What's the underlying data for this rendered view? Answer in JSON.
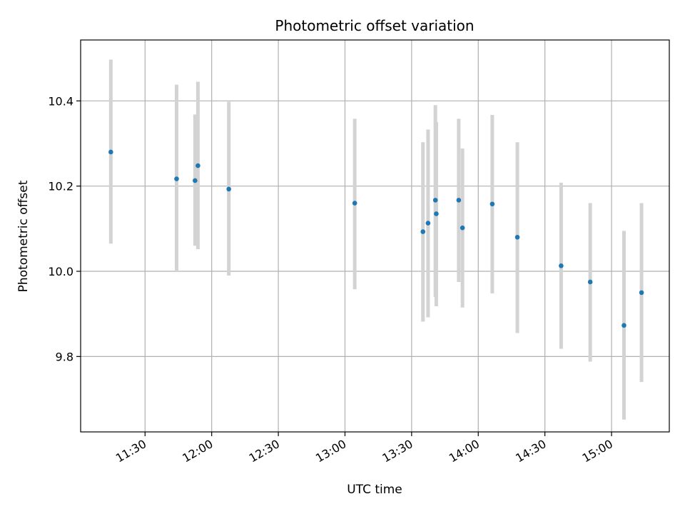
{
  "chart_data": {
    "type": "scatter",
    "title": "Photometric offset variation",
    "xlabel": "UTC time",
    "ylabel": "Photometric offset",
    "x_ticks": [
      "11:30",
      "12:00",
      "12:30",
      "13:00",
      "13:30",
      "14:00",
      "14:30",
      "15:00"
    ],
    "x_ticks_minutes": [
      690,
      720,
      750,
      780,
      810,
      840,
      870,
      900
    ],
    "y_ticks": [
      "9.8",
      "10.0",
      "10.2",
      "10.4"
    ],
    "y_ticks_values": [
      9.8,
      10.0,
      10.2,
      10.4
    ],
    "xlim_minutes": [
      661,
      926
    ],
    "ylim": [
      9.623,
      10.543
    ],
    "grid": true,
    "marker_color": "#1f77b4",
    "errorbar_color": "#d3d3d3",
    "points": [
      {
        "time": "11:14:36",
        "t": 674.6,
        "y": 10.28,
        "ylow": 10.065,
        "yhigh": 10.497
      },
      {
        "time": "11:44:12",
        "t": 704.2,
        "y": 10.217,
        "ylow": 10.0,
        "yhigh": 10.438
      },
      {
        "time": "11:52:30",
        "t": 712.5,
        "y": 10.213,
        "ylow": 10.06,
        "yhigh": 10.368
      },
      {
        "time": "11:53:48",
        "t": 713.8,
        "y": 10.248,
        "ylow": 10.052,
        "yhigh": 10.445
      },
      {
        "time": "12:07:42",
        "t": 727.7,
        "y": 10.193,
        "ylow": 9.99,
        "yhigh": 10.398
      },
      {
        "time": "13:04:24",
        "t": 784.4,
        "y": 10.16,
        "ylow": 9.958,
        "yhigh": 10.358
      },
      {
        "time": "13:35:06",
        "t": 815.1,
        "y": 10.093,
        "ylow": 9.882,
        "yhigh": 10.303
      },
      {
        "time": "13:37:24",
        "t": 817.4,
        "y": 10.113,
        "ylow": 9.892,
        "yhigh": 10.333
      },
      {
        "time": "13:40:42",
        "t": 820.7,
        "y": 10.167,
        "ylow": 9.94,
        "yhigh": 10.39
      },
      {
        "time": "13:41:06",
        "t": 821.1,
        "y": 10.135,
        "ylow": 9.918,
        "yhigh": 10.35
      },
      {
        "time": "13:51:12",
        "t": 831.2,
        "y": 10.167,
        "ylow": 9.975,
        "yhigh": 10.358
      },
      {
        "time": "13:52:54",
        "t": 832.9,
        "y": 10.102,
        "ylow": 9.915,
        "yhigh": 10.288
      },
      {
        "time": "14:06:18",
        "t": 846.3,
        "y": 10.158,
        "ylow": 9.948,
        "yhigh": 10.367
      },
      {
        "time": "14:17:36",
        "t": 857.6,
        "y": 10.08,
        "ylow": 9.855,
        "yhigh": 10.303
      },
      {
        "time": "14:37:18",
        "t": 877.3,
        "y": 10.013,
        "ylow": 9.818,
        "yhigh": 10.208
      },
      {
        "time": "14:50:24",
        "t": 890.4,
        "y": 9.975,
        "ylow": 9.788,
        "yhigh": 10.16
      },
      {
        "time": "15:05:36",
        "t": 905.6,
        "y": 9.873,
        "ylow": 9.652,
        "yhigh": 10.095
      },
      {
        "time": "15:13:30",
        "t": 913.5,
        "y": 9.95,
        "ylow": 9.74,
        "yhigh": 10.16
      }
    ]
  }
}
